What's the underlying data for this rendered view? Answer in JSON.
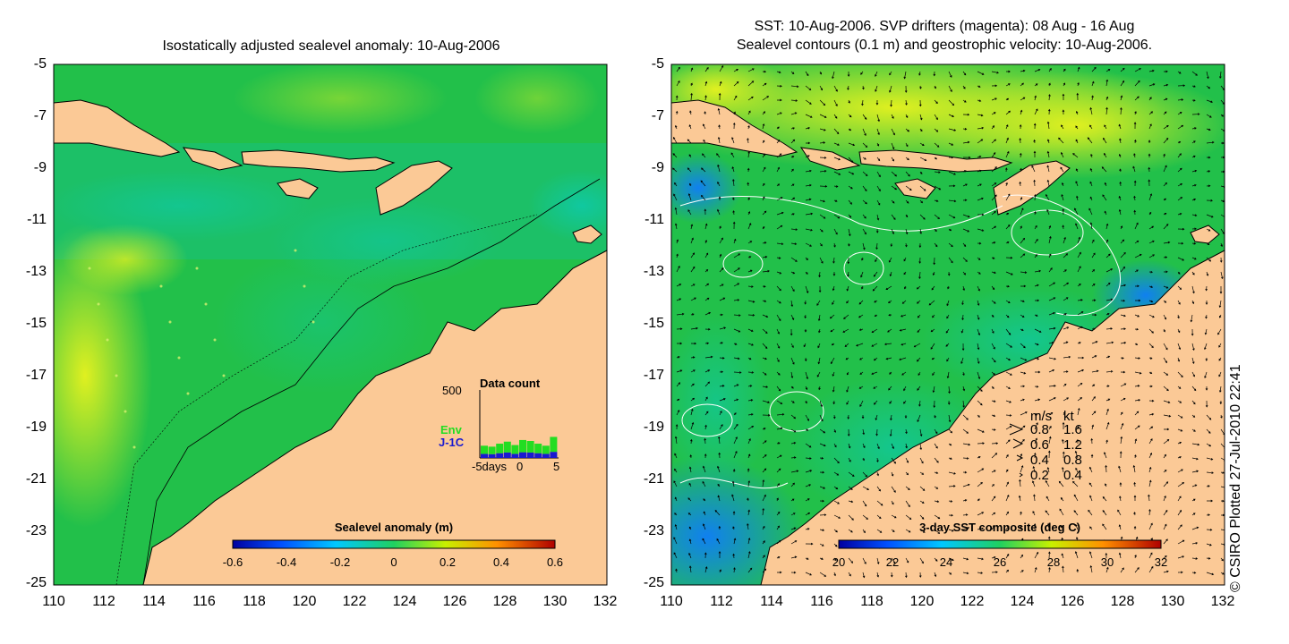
{
  "left_panel": {
    "title": "Isostatically adjusted sealevel anomaly: 10-Aug-2006",
    "y_ticks": [
      "-5",
      "-7",
      "-9",
      "-11",
      "-13",
      "-15",
      "-17",
      "-19",
      "-21",
      "-23",
      "-25"
    ],
    "x_ticks": [
      "110",
      "112",
      "114",
      "116",
      "118",
      "120",
      "122",
      "124",
      "126",
      "128",
      "130",
      "132"
    ],
    "colorbar": {
      "title": "Sealevel anomaly (m)",
      "ticks": [
        "-0.6",
        "-0.4",
        "-0.2",
        "0",
        "0.2",
        "0.4",
        "0.6"
      ]
    },
    "inset": {
      "title": "Data count",
      "ymax_label": "500",
      "env_label": "Env",
      "j1c_label": "J-1C",
      "x_label_left": "-5days",
      "x_label_mid": "0",
      "x_label_right": "5",
      "env_counts": [
        60,
        55,
        70,
        80,
        65,
        90,
        85,
        70,
        60,
        110
      ],
      "j1c_counts": [
        30,
        28,
        35,
        40,
        30,
        42,
        40,
        35,
        30,
        45
      ],
      "env_color": "#22dd22",
      "j1c_color": "#1a1ad0"
    }
  },
  "right_panel": {
    "title_line1": "SST: 10-Aug-2006. SVP drifters (magenta): 08 Aug - 16 Aug",
    "title_line2": "Sealevel contours (0.1 m) and geostrophic velocity: 10-Aug-2006.",
    "y_ticks": [
      "-5",
      "-7",
      "-9",
      "-11",
      "-13",
      "-15",
      "-17",
      "-19",
      "-21",
      "-23",
      "-25"
    ],
    "x_ticks": [
      "110",
      "112",
      "114",
      "116",
      "118",
      "120",
      "122",
      "124",
      "126",
      "128",
      "130",
      "132"
    ],
    "colorbar": {
      "title": "3-day SST composite (deg C)",
      "ticks": [
        "20",
        "22",
        "24",
        "26",
        "28",
        "30",
        "32"
      ]
    },
    "velocity_legend": {
      "header_ms": "m/s",
      "header_kt": "kt",
      "rows": [
        {
          "ms": "0.8",
          "kt": "1.6"
        },
        {
          "ms": "0.6",
          "kt": "1.2"
        },
        {
          "ms": "0.4",
          "kt": "0.8"
        },
        {
          "ms": "0.2",
          "kt": "0.4"
        }
      ]
    }
  },
  "copyright": "© CSIRO Plotted 27-Jul-2010 22:41",
  "colors": {
    "land": "#fbc996",
    "ocean_green": "#22c04a",
    "ocean_teal": "#1ac890",
    "ocean_yellow": "#c8f020",
    "sst_blue": "#1a7af0"
  }
}
